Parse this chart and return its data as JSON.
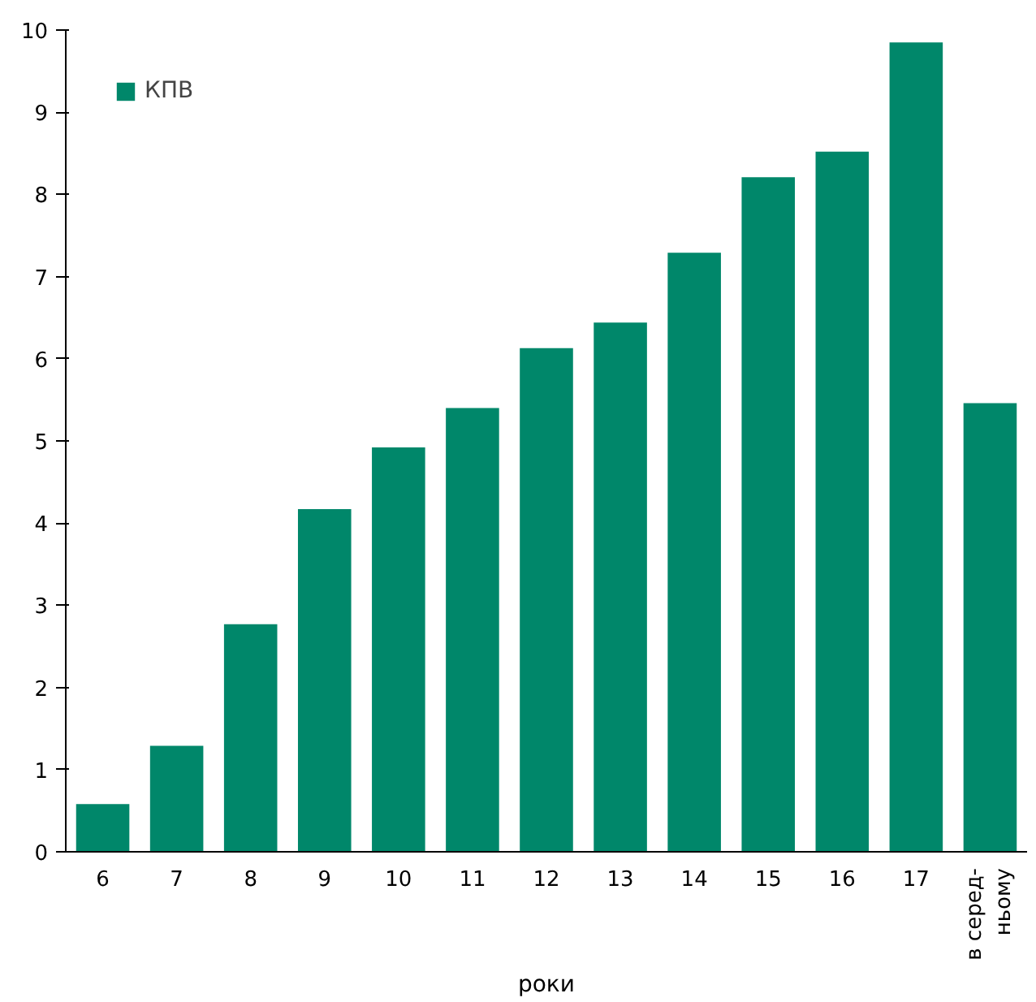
{
  "chart_data": {
    "type": "bar",
    "xlabel": "роки",
    "categories": [
      "6",
      "7",
      "8",
      "9",
      "10",
      "11",
      "12",
      "13",
      "14",
      "15",
      "16",
      "17",
      "в серед-\nньому"
    ],
    "series": [
      {
        "name": "КПВ",
        "color": "#00876a",
        "values": [
          0.58,
          1.29,
          2.77,
          4.17,
          4.92,
          5.4,
          6.13,
          6.44,
          7.29,
          8.21,
          8.52,
          9.85,
          5.46
        ]
      }
    ],
    "ylim": [
      0,
      10
    ],
    "yticks": [
      0,
      1,
      2,
      3,
      4,
      5,
      6,
      7,
      8,
      9,
      10
    ],
    "grid": false,
    "legend": "top left"
  }
}
